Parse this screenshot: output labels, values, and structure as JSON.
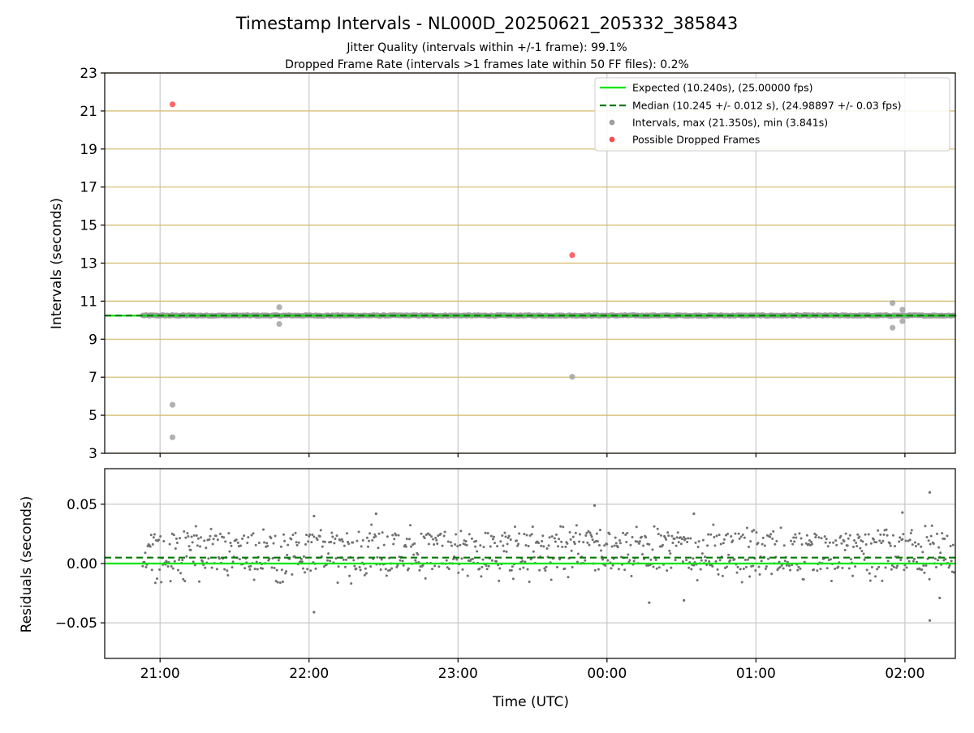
{
  "chart_data": [
    {
      "type": "scatter",
      "title": "Timestamp Intervals - NL000D_20250621_205332_385843",
      "subtitle_lines": [
        "Jitter Quality (intervals within +/-1 frame): 99.1%",
        "Dropped Frame Rate (intervals >1 frames late within 50 FF files): 0.2%"
      ],
      "ylabel": "Intervals (seconds)",
      "ylim": [
        3,
        23
      ],
      "yticks": [
        3,
        5,
        7,
        9,
        11,
        13,
        15,
        17,
        19,
        21,
        23
      ],
      "horizontal_gridlines": [
        3,
        5,
        7,
        9,
        11,
        13,
        15,
        17,
        19,
        21,
        23
      ],
      "horizontal_grid_color": "#d4b86a",
      "vertical_grid": true,
      "legend_position": "top-right",
      "legend": [
        "Expected (10.240s), (25.00000 fps)",
        "Median (10.245 +/- 0.012 s), (24.98897 +/- 0.03 fps)",
        "Intervals, max (21.350s), min (3.841s)",
        "Possible Dropped Frames"
      ],
      "expected_interval": 10.24,
      "median_interval": 10.245,
      "dense_band": {
        "start": "20:53",
        "end": "02:20",
        "center": 10.245,
        "spread": 0.012
      },
      "series": [
        {
          "kind": "outlier_intervals",
          "points": [
            {
              "x": "21:05",
              "y": 5.55
            },
            {
              "x": "21:05",
              "y": 3.84
            },
            {
              "x": "21:48",
              "y": 10.68
            },
            {
              "x": "21:48",
              "y": 9.8
            },
            {
              "x": "23:46",
              "y": 7.02
            },
            {
              "x": "01:55",
              "y": 10.9
            },
            {
              "x": "01:55",
              "y": 9.6
            },
            {
              "x": "01:59",
              "y": 10.55
            },
            {
              "x": "01:59",
              "y": 9.95
            }
          ]
        },
        {
          "kind": "possible_dropped_frames",
          "points": [
            {
              "x": "21:05",
              "y": 21.35
            },
            {
              "x": "23:46",
              "y": 13.42
            }
          ]
        }
      ],
      "colors": {
        "expected": "#00e600",
        "median": "#007a00",
        "intervals": "#9e9e9e",
        "dropped": "#ff4d4d"
      }
    },
    {
      "type": "scatter",
      "ylabel": "Residuals (seconds)",
      "xlabel": "Time (UTC)",
      "ylim": [
        -0.08,
        0.08
      ],
      "yticks": [
        -0.05,
        0.0,
        0.05
      ],
      "ytick_labels": [
        "−0.05",
        "0.00",
        "0.05"
      ],
      "xlim": [
        "20:38",
        "02:20"
      ],
      "xticks": [
        "21:00",
        "22:00",
        "23:00",
        "00:00",
        "01:00",
        "02:00"
      ],
      "grid": true,
      "expected_residual": 0.0,
      "median_residual": 0.005,
      "residual_bands": [
        0.0,
        0.02
      ],
      "notable_points": [
        {
          "x": "22:02",
          "y": 0.04
        },
        {
          "x": "22:02",
          "y": -0.041
        },
        {
          "x": "22:27",
          "y": 0.042
        },
        {
          "x": "23:55",
          "y": 0.049
        },
        {
          "x": "00:17",
          "y": -0.033
        },
        {
          "x": "00:31",
          "y": -0.031
        },
        {
          "x": "00:35",
          "y": 0.042
        },
        {
          "x": "01:59",
          "y": 0.043
        },
        {
          "x": "02:10",
          "y": 0.06
        },
        {
          "x": "02:10",
          "y": -0.048
        },
        {
          "x": "02:14",
          "y": -0.029
        }
      ],
      "colors": {
        "points": "#707070",
        "expected": "#00e600",
        "median": "#007a00"
      }
    }
  ]
}
